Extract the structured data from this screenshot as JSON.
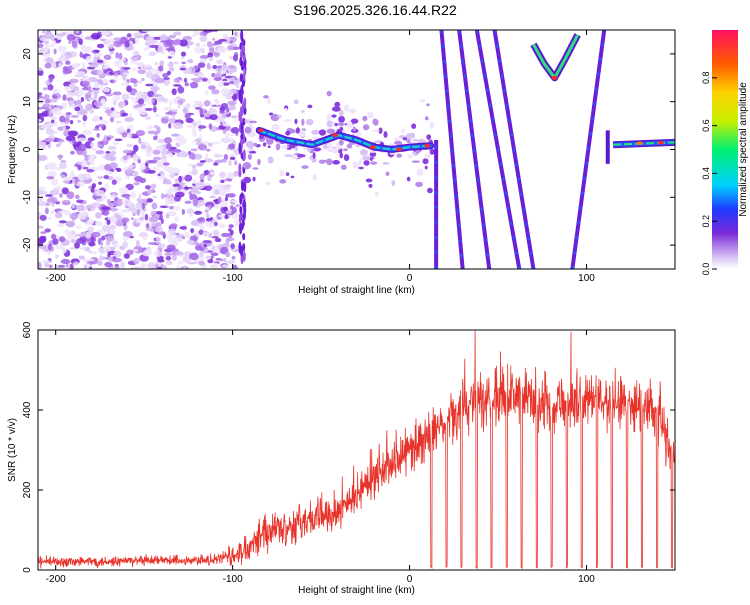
{
  "title": "S196.2025.326.16.44.R22",
  "chart_data": [
    {
      "type": "heatmap",
      "title": "S196.2025.326.16.44.R22",
      "xlabel": "Height of straight line (km)",
      "ylabel": "Frequency (Hz)",
      "xlim": [
        -210,
        150
      ],
      "ylim": [
        -25,
        25
      ],
      "x_ticks": [
        -200,
        -100,
        0,
        100
      ],
      "x_tick_labels": [
        "-200",
        "-100",
        "0",
        "100"
      ],
      "y_ticks": [
        -20,
        -10,
        0,
        10,
        20
      ],
      "y_tick_labels": [
        "-20",
        "-10",
        "0",
        "10",
        "20"
      ],
      "colorbar": {
        "label": "Normalized spectral amplitude",
        "range": [
          0,
          1
        ],
        "ticks": [
          0.0,
          0.2,
          0.4,
          0.6,
          0.8
        ],
        "tick_labels": [
          "0.0",
          "0.2",
          "0.4",
          "0.6",
          "0.8"
        ]
      },
      "features": {
        "noise_region_x": [
          -210,
          -97
        ],
        "ridge_points": [
          [
            -85,
            4
          ],
          [
            -70,
            2
          ],
          [
            -55,
            1
          ],
          [
            -40,
            3
          ],
          [
            -30,
            2
          ],
          [
            -20,
            0.5
          ],
          [
            -10,
            0
          ],
          [
            0,
            0.5
          ],
          [
            12,
            0.8
          ]
        ],
        "ridge_right": [
          [
            115,
            1
          ],
          [
            150,
            1.5
          ]
        ],
        "diagonal_lines": [
          {
            "from": [
              15,
              -25
            ],
            "to": [
              15,
              2
            ]
          },
          {
            "from": [
              18,
              25
            ],
            "to": [
              30,
              -25
            ]
          },
          {
            "from": [
              28,
              25
            ],
            "to": [
              45,
              -25
            ]
          },
          {
            "from": [
              38,
              25
            ],
            "to": [
              62,
              -25
            ]
          },
          {
            "from": [
              48,
              25
            ],
            "to": [
              70,
              -25
            ]
          },
          {
            "from": [
              92,
              -25
            ],
            "to": [
              110,
              25
            ]
          }
        ],
        "v_curve": [
          [
            70,
            22
          ],
          [
            76,
            18
          ],
          [
            82,
            15
          ],
          [
            88,
            19
          ],
          [
            95,
            24
          ]
        ]
      }
    },
    {
      "type": "line",
      "xlabel": "Height of straight line (km)",
      "ylabel": "SNR (10 * v/v)",
      "xlim": [
        -210,
        150
      ],
      "ylim": [
        0,
        600
      ],
      "x_ticks": [
        -200,
        -100,
        0,
        100
      ],
      "x_tick_labels": [
        "-200",
        "-100",
        "0",
        "100"
      ],
      "y_ticks": [
        0,
        200,
        400,
        600
      ],
      "y_tick_labels": [
        "0",
        "200",
        "400",
        "600"
      ],
      "series": [
        {
          "name": "SNR",
          "color": "#e8332a",
          "envelope_x": [
            -210,
            -110,
            -95,
            -85,
            -60,
            -40,
            -20,
            0,
            20,
            40,
            60,
            80,
            100,
            120,
            140,
            150
          ],
          "envelope_y": [
            20,
            25,
            45,
            90,
            120,
            150,
            230,
            300,
            370,
            430,
            440,
            420,
            430,
            420,
            400,
            260
          ],
          "noise_amplitude": [
            18,
            18,
            40,
            60,
            60,
            60,
            60,
            70,
            80,
            90,
            90,
            90,
            90,
            90,
            90,
            80
          ],
          "dropout_start_km": 12,
          "dropout_spacing_km": 8.5,
          "dropout_value": 5
        }
      ]
    }
  ]
}
